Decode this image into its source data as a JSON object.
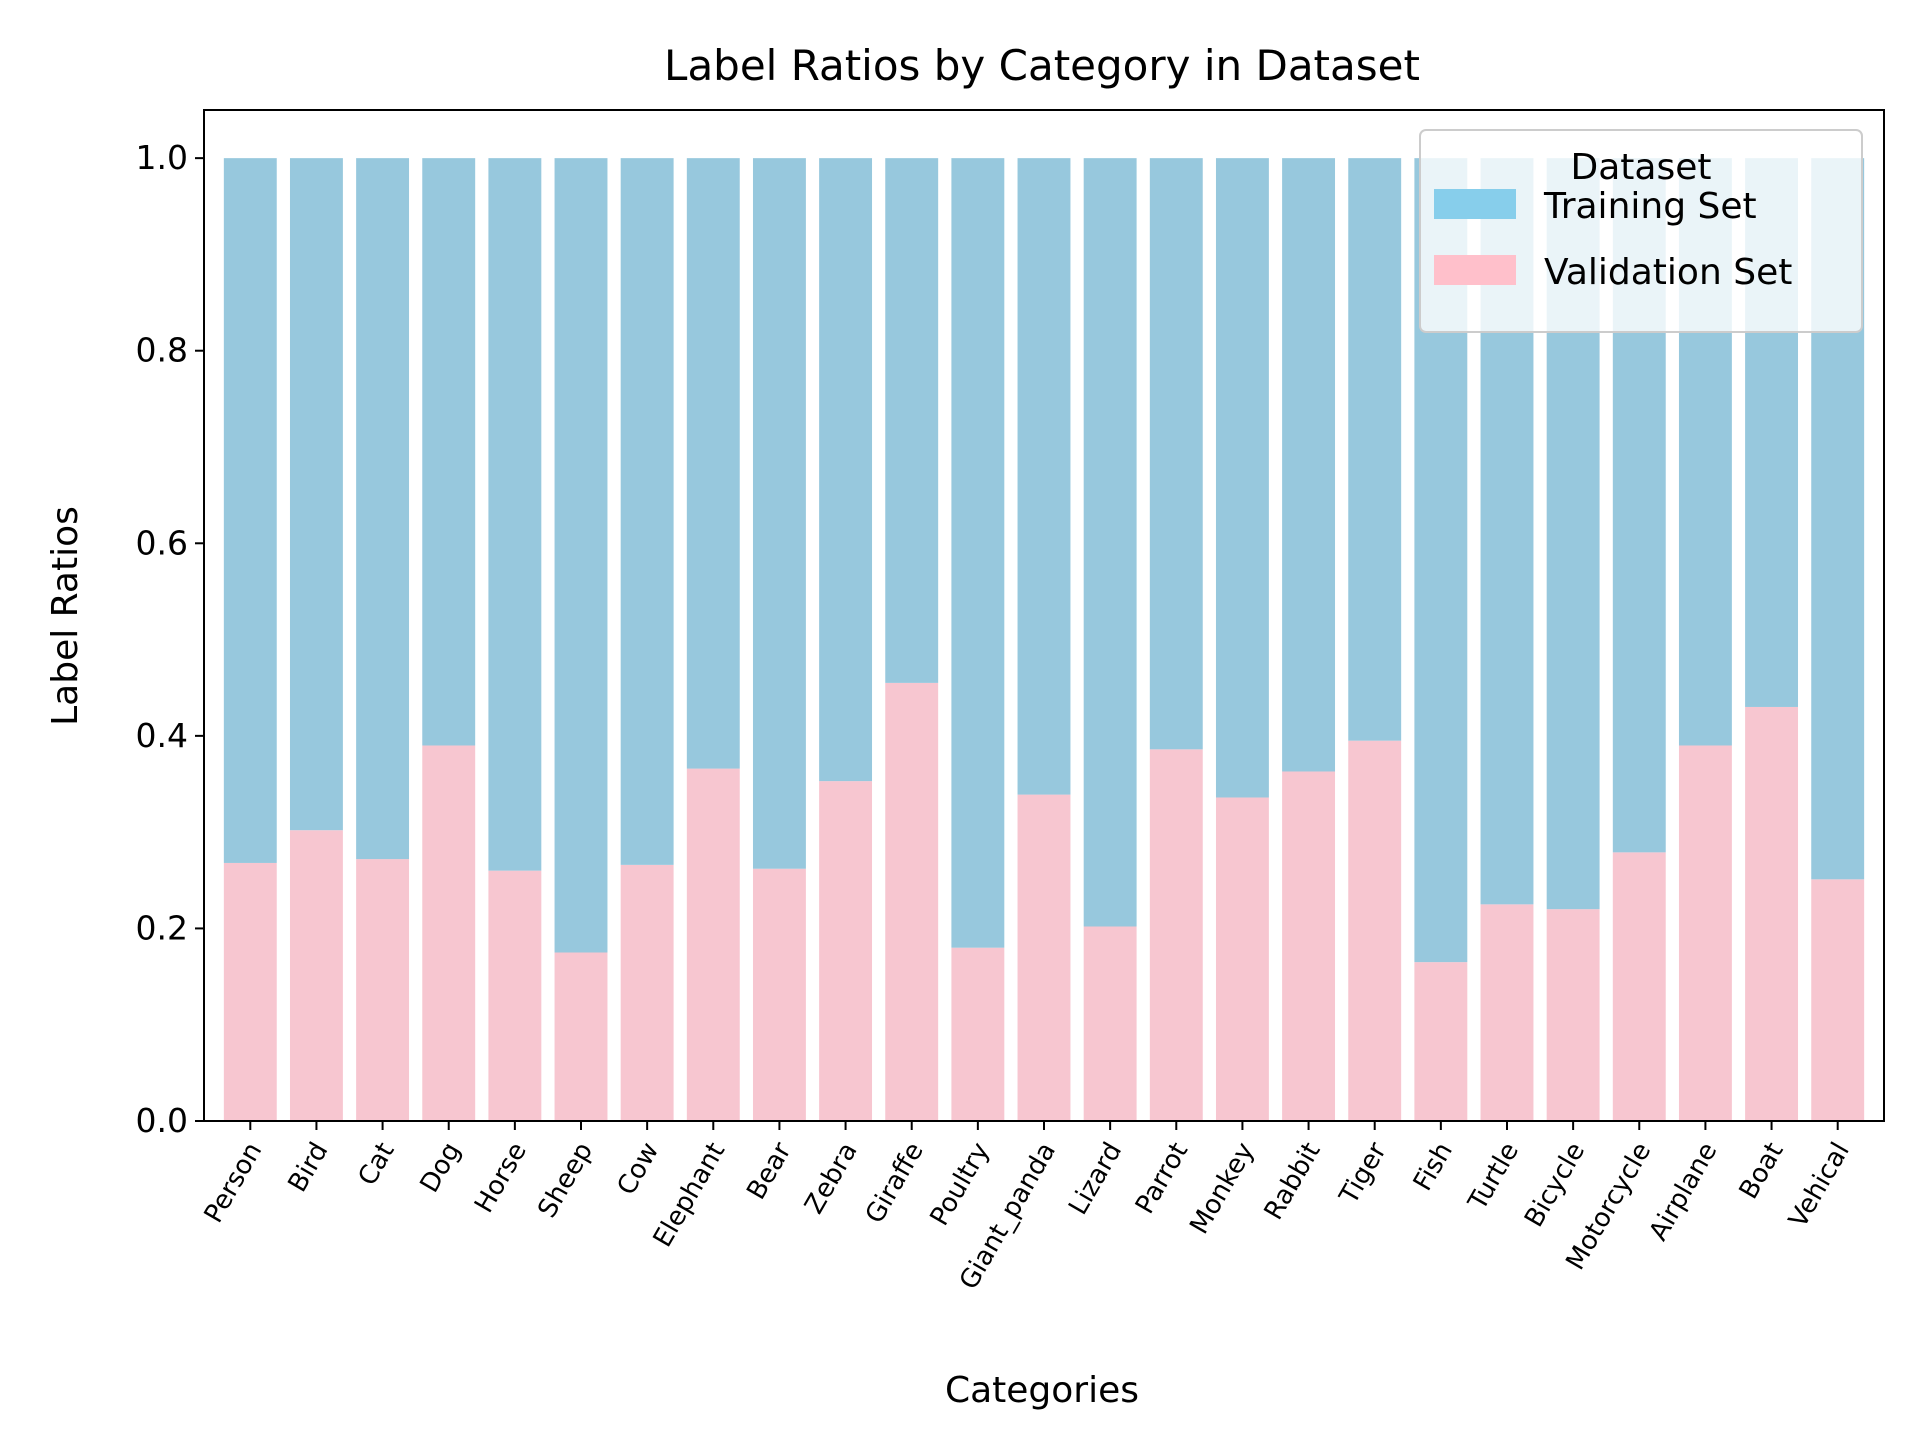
{
  "chart_data": {
    "type": "bar",
    "stacked": true,
    "title": "Label Ratios by Category in Dataset",
    "xlabel": "Categories",
    "ylabel": "Label Ratios",
    "ylim": [
      0,
      1.05
    ],
    "yticks": [
      "0.0",
      "0.2",
      "0.4",
      "0.6",
      "0.8",
      "1.0"
    ],
    "grid": false,
    "legend": {
      "title": "Dataset",
      "placement": "top-right"
    },
    "categories": [
      "Person",
      "Bird",
      "Cat",
      "Dog",
      "Horse",
      "Sheep",
      "Cow",
      "Elephant",
      "Bear",
      "Zebra",
      "Giraffe",
      "Poultry",
      "Giant_panda",
      "Lizard",
      "Parrot",
      "Monkey",
      "Rabbit",
      "Tiger",
      "Fish",
      "Turtle",
      "Bicycle",
      "Motorcycle",
      "Airplane",
      "Boat",
      "Vehical"
    ],
    "series": [
      {
        "name": "Validation Set",
        "color": "#f7c6d0",
        "legend_color": "#ffc0cb",
        "values": [
          0.268,
          0.302,
          0.272,
          0.39,
          0.26,
          0.175,
          0.266,
          0.366,
          0.262,
          0.353,
          0.455,
          0.18,
          0.339,
          0.202,
          0.386,
          0.336,
          0.363,
          0.395,
          0.165,
          0.225,
          0.22,
          0.279,
          0.39,
          0.43,
          0.251
        ]
      },
      {
        "name": "Training Set",
        "color": "#97c8dd",
        "legend_color": "#87ceeb",
        "values": [
          0.732,
          0.698,
          0.728,
          0.61,
          0.74,
          0.825,
          0.734,
          0.634,
          0.738,
          0.647,
          0.545,
          0.82,
          0.661,
          0.798,
          0.614,
          0.664,
          0.637,
          0.605,
          0.835,
          0.775,
          0.78,
          0.721,
          0.61,
          0.57,
          0.749
        ]
      }
    ]
  }
}
